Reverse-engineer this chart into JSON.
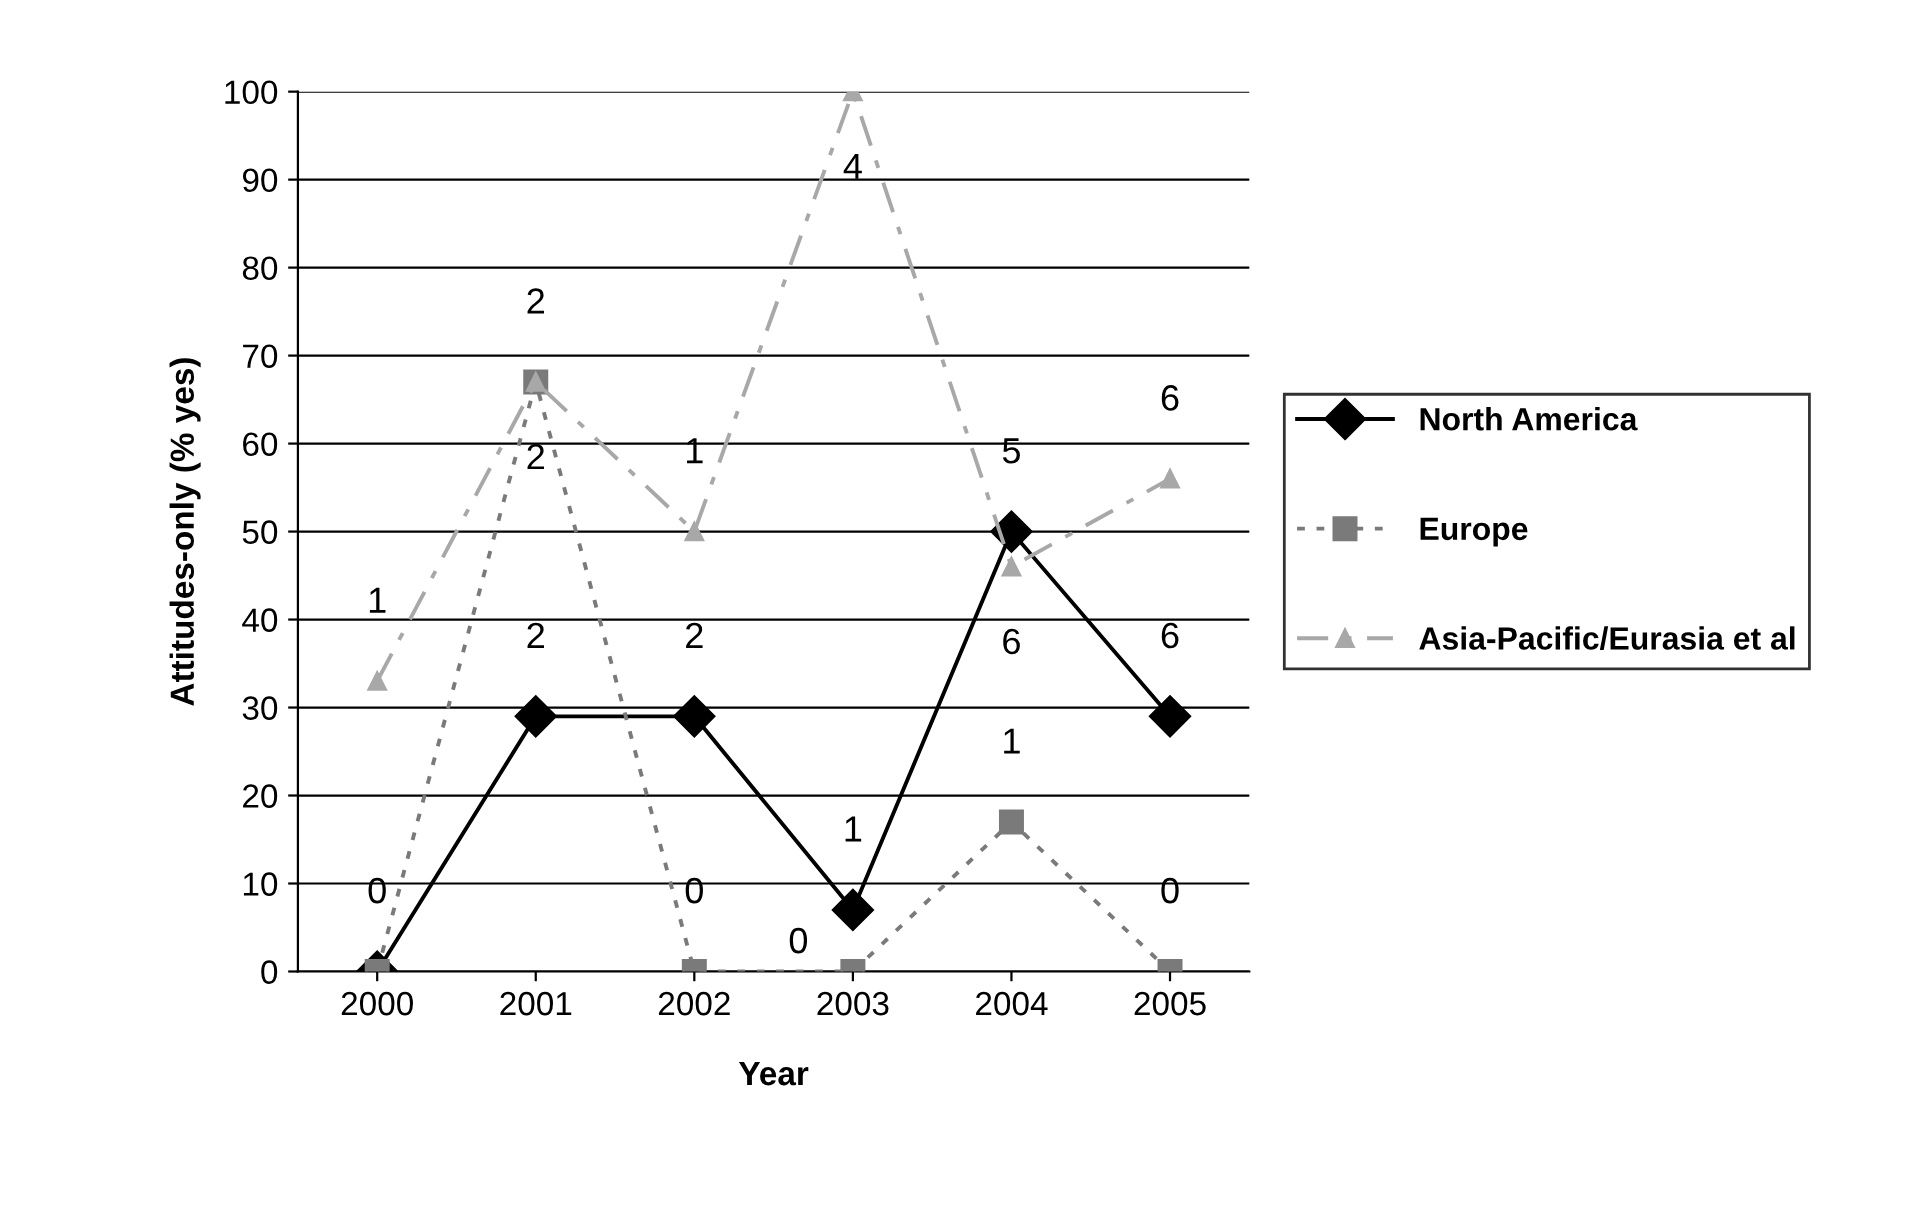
{
  "chart_data": {
    "type": "line",
    "xlabel": "Year",
    "ylabel": "Attitudes-only (% yes)",
    "categories": [
      "2000",
      "2001",
      "2002",
      "2003",
      "2004",
      "2005"
    ],
    "series": [
      {
        "name": "North America",
        "color": "#000000",
        "marker": "diamond",
        "line_style": "solid",
        "values": [
          0,
          29,
          29,
          7,
          50,
          29
        ]
      },
      {
        "name": "Europe",
        "color": "#7a7a7a",
        "marker": "square",
        "line_style": "dotted",
        "values": [
          0,
          67,
          0,
          0,
          17,
          0
        ]
      },
      {
        "name": "Asia-Pacific/Eurasia et al",
        "color": "#a8a8a8",
        "marker": "triangle",
        "line_style": "dashed",
        "values": [
          33,
          67,
          50,
          100,
          46,
          56
        ]
      }
    ],
    "ylim": [
      0,
      100
    ],
    "yticks": [
      0,
      10,
      20,
      30,
      40,
      50,
      60,
      70,
      80,
      90,
      100
    ],
    "grid": "y",
    "legend": "right",
    "annotations": [
      {
        "text": "2",
        "x": "2001",
        "y": 29
      },
      {
        "text": "2",
        "x": "2002",
        "y": 29
      },
      {
        "text": "1",
        "x": "2003",
        "y": 7
      },
      {
        "text": "5",
        "x": "2004",
        "y": 50
      },
      {
        "text": "6",
        "x": "2005",
        "y": 29
      },
      {
        "text": "0",
        "x": "2000",
        "y": 0
      },
      {
        "text": "2",
        "x": "2001",
        "y": 67
      },
      {
        "text": "0",
        "x": "2002",
        "y": 0
      },
      {
        "text": "0",
        "x": "2003",
        "y": 0
      },
      {
        "text": "1",
        "x": "2004",
        "y": 17
      },
      {
        "text": "0",
        "x": "2005",
        "y": 0
      },
      {
        "text": "1",
        "x": "2000",
        "y": 33
      },
      {
        "text": "2",
        "x": "2001",
        "y": 67
      },
      {
        "text": "1",
        "x": "2002",
        "y": 50
      },
      {
        "text": "4",
        "x": "2003",
        "y": 100
      },
      {
        "text": "6",
        "x": "2004",
        "y": 46
      },
      {
        "text": "6",
        "x": "2005",
        "y": 56
      }
    ]
  }
}
